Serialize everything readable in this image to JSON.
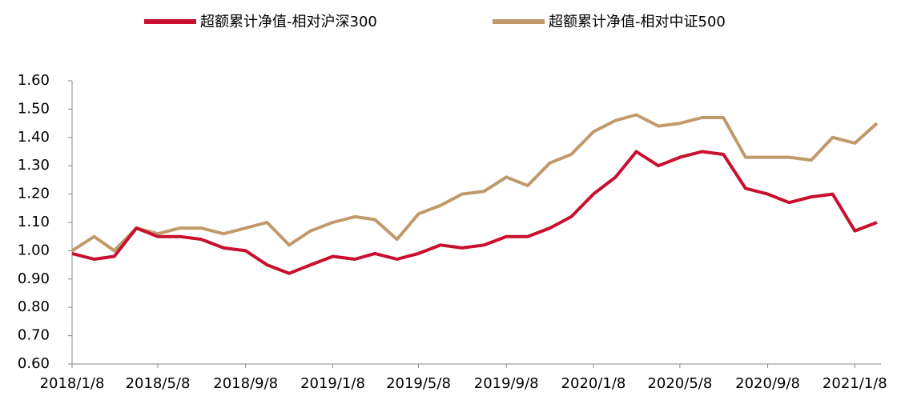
{
  "chart_data": {
    "type": "line",
    "x": [
      "2018/1/8",
      "2018/2/8",
      "2018/3/8",
      "2018/4/8",
      "2018/5/8",
      "2018/6/8",
      "2018/7/8",
      "2018/8/8",
      "2018/9/8",
      "2018/10/8",
      "2018/11/8",
      "2018/12/8",
      "2019/1/8",
      "2019/2/8",
      "2019/3/8",
      "2019/4/8",
      "2019/5/8",
      "2019/6/8",
      "2019/7/8",
      "2019/8/8",
      "2019/9/8",
      "2019/10/8",
      "2019/11/8",
      "2019/12/8",
      "2020/1/8",
      "2020/2/8",
      "2020/3/8",
      "2020/4/8",
      "2020/5/8",
      "2020/6/8",
      "2020/7/8",
      "2020/8/8",
      "2020/9/8",
      "2020/10/8",
      "2020/11/8",
      "2020/12/8",
      "2021/1/8",
      "2021/2/8"
    ],
    "series": [
      {
        "name": "超额累计净值-相对沪深300",
        "color": "#c8102e",
        "values": [
          0.99,
          0.97,
          0.98,
          1.08,
          1.05,
          1.05,
          1.04,
          1.01,
          1.0,
          0.95,
          0.92,
          0.95,
          0.98,
          0.97,
          0.99,
          0.97,
          0.99,
          1.02,
          1.01,
          1.02,
          1.05,
          1.05,
          1.08,
          1.12,
          1.2,
          1.26,
          1.35,
          1.3,
          1.33,
          1.35,
          1.34,
          1.22,
          1.2,
          1.17,
          1.19,
          1.2,
          1.07,
          1.1
        ]
      },
      {
        "name": "超额累计净值-相对中证500",
        "color": "#c19a6b",
        "values": [
          1.0,
          1.05,
          1.0,
          1.08,
          1.06,
          1.08,
          1.08,
          1.06,
          1.08,
          1.1,
          1.02,
          1.07,
          1.1,
          1.12,
          1.11,
          1.04,
          1.13,
          1.16,
          1.2,
          1.21,
          1.26,
          1.23,
          1.31,
          1.34,
          1.42,
          1.46,
          1.48,
          1.44,
          1.45,
          1.47,
          1.47,
          1.33,
          1.33,
          1.33,
          1.32,
          1.4,
          1.38,
          1.45
        ]
      }
    ],
    "xlim": [
      "2018/1/8",
      "2021/2/8"
    ],
    "xticks": [
      "2018/1/8",
      "2018/5/8",
      "2018/9/8",
      "2019/1/8",
      "2019/5/8",
      "2019/9/8",
      "2020/1/8",
      "2020/5/8",
      "2020/9/8",
      "2021/1/8"
    ],
    "ylim": [
      0.6,
      1.6
    ],
    "yticks": [
      {
        "value": 0.6,
        "label": "0.60"
      },
      {
        "value": 0.7,
        "label": "0.70"
      },
      {
        "value": 0.8,
        "label": "0.80"
      },
      {
        "value": 0.9,
        "label": "0.90"
      },
      {
        "value": 1.0,
        "label": "1.00"
      },
      {
        "value": 1.1,
        "label": "1.10"
      },
      {
        "value": 1.2,
        "label": "1.20"
      },
      {
        "value": 1.3,
        "label": "1.30"
      },
      {
        "value": 1.4,
        "label": "1.40"
      },
      {
        "value": 1.5,
        "label": "1.50"
      },
      {
        "value": 1.6,
        "label": "1.60"
      }
    ],
    "grid": false,
    "legend": "top"
  }
}
